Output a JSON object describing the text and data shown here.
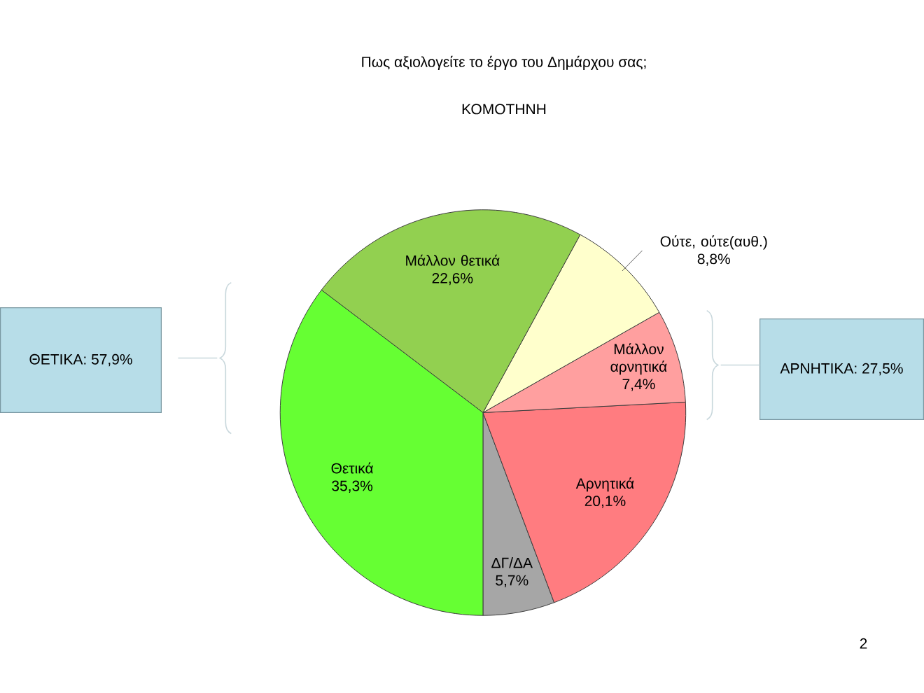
{
  "chart_data": {
    "type": "pie",
    "title": "Πως αξιολογείτε το έργο του Δημάρχου σας;",
    "subtitle": "ΚΟΜΟΤΗΝΗ",
    "categories": [
      "ΔΓ/ΔΑ",
      "Αρνητικά",
      "Μάλλον αρνητικά",
      "Ούτε, ούτε(αυθ.)",
      "Μάλλον θετικά",
      "Θετικά"
    ],
    "values": [
      5.7,
      20.1,
      7.4,
      8.8,
      22.6,
      35.3
    ],
    "value_labels": [
      "5,7%",
      "20,1%",
      "7,4%",
      "8,8%",
      "22,6%",
      "35,3%"
    ],
    "colors": [
      "#a6a6a6",
      "#ff7c80",
      "#ff9f9f",
      "#ffffcc",
      "#92d050",
      "#66ff33"
    ],
    "annotations": [
      "ΘΕΤΙΚΑ: 57,9%",
      "ΑΡΝΗΤΙΚΑ: 27,5%",
      "2"
    ]
  }
}
